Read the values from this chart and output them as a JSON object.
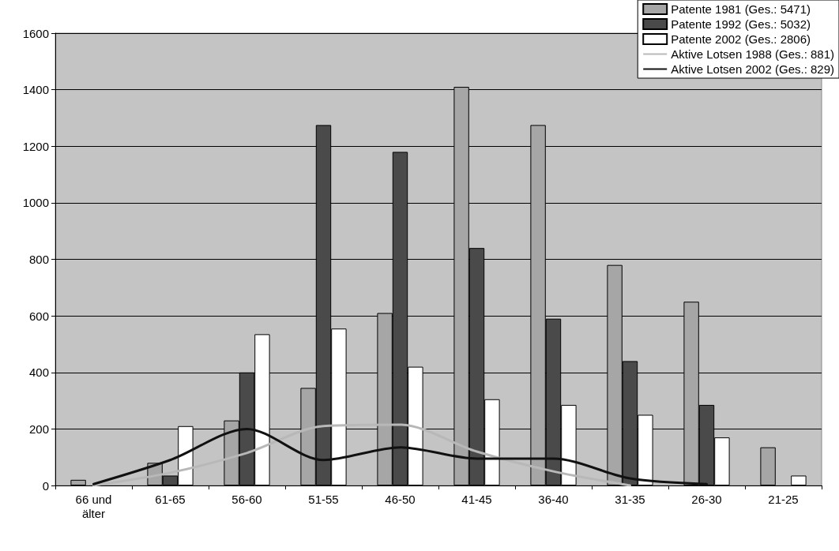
{
  "chart_data": {
    "type": "bar",
    "categories": [
      "66 und\nälter",
      "61-65",
      "56-60",
      "51-55",
      "46-50",
      "41-45",
      "36-40",
      "31-35",
      "26-30",
      "21-25"
    ],
    "series": [
      {
        "name": "Patente 1981 (Ges.: 5471)",
        "color": "#a6a6a6",
        "values": [
          20,
          80,
          230,
          345,
          610,
          1410,
          1275,
          780,
          650,
          135
        ]
      },
      {
        "name": "Patente 1992 (Ges.: 5032)",
        "color": "#4a4a4a",
        "values": [
          null,
          35,
          400,
          1275,
          1180,
          840,
          590,
          440,
          285,
          null
        ]
      },
      {
        "name": "Patente 2002 (Ges.: 2806)",
        "color": "#ffffff",
        "values": [
          null,
          210,
          535,
          555,
          420,
          305,
          285,
          250,
          170,
          35
        ]
      },
      {
        "name": "Aktive Lotsen 1988 (Ges.: 881)",
        "type": "line",
        "color": "#b8b8b8",
        "values": [
          0,
          45,
          115,
          210,
          215,
          120,
          50,
          0,
          null,
          null
        ]
      },
      {
        "name": "Aktive Lotsen 2002 (Ges.: 829)",
        "type": "line",
        "color": "#111111",
        "values": [
          5,
          90,
          200,
          90,
          135,
          95,
          95,
          25,
          5,
          null
        ]
      }
    ],
    "ylim": [
      0,
      1600
    ],
    "yticks": [
      0,
      200,
      400,
      600,
      800,
      1000,
      1200,
      1400,
      1600
    ],
    "grid": "y",
    "legend": "top right",
    "marker": "none"
  }
}
